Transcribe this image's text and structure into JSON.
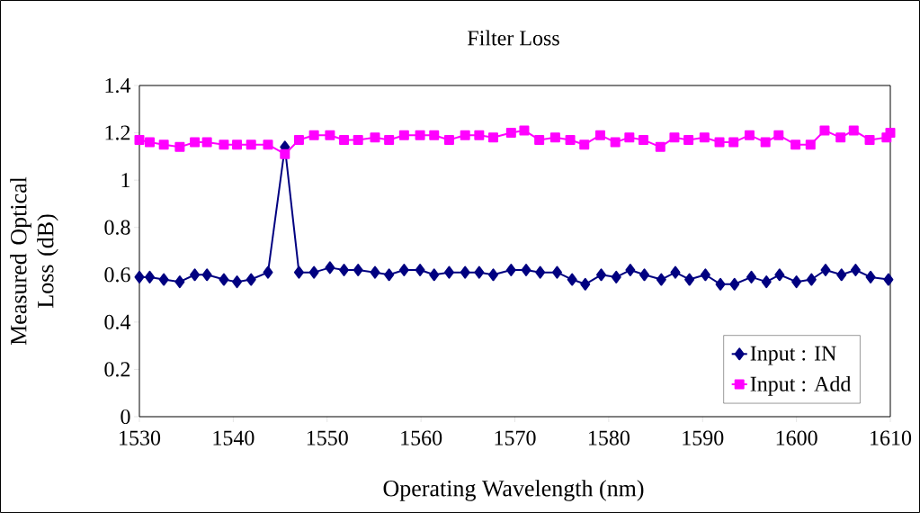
{
  "chart_data": {
    "type": "line",
    "title": "Filter Loss",
    "xlabel": "Operating Wavelength (nm)",
    "ylabel": "Measured Optical Loss (dB)",
    "xlim": [
      1530,
      1610
    ],
    "xticks": [
      1530,
      1540,
      1550,
      1560,
      1570,
      1580,
      1590,
      1600,
      1610
    ],
    "ylim": [
      0,
      1.4
    ],
    "yticks": [
      0,
      {
        "value": 0.2,
        "label": "0.2"
      },
      {
        "value": 0.4,
        "label": "0.4"
      },
      {
        "value": 0.6,
        "label": "0.6"
      },
      {
        "value": 0.8,
        "label": "0.8"
      },
      1,
      {
        "value": 1.2,
        "label": "1.2"
      },
      {
        "value": 1.4,
        "label": "1.4"
      }
    ],
    "grid": false,
    "legend": "bottom right",
    "line_style": "solid",
    "series": [
      {
        "name": "Input : IN",
        "color": "#000080",
        "marker": "diamond",
        "x": [
          1530,
          1531.1,
          1532.6,
          1534.3,
          1535.9,
          1537.2,
          1539.0,
          1540.4,
          1541.9,
          1543.7,
          1545.5,
          1547.0,
          1548.6,
          1550.3,
          1551.8,
          1553.3,
          1555.1,
          1556.6,
          1558.2,
          1559.9,
          1561.4,
          1563.0,
          1564.7,
          1566.2,
          1567.7,
          1569.6,
          1571.2,
          1572.7,
          1574.5,
          1576.1,
          1577.5,
          1579.2,
          1580.8,
          1582.3,
          1583.8,
          1585.6,
          1587.1,
          1588.6,
          1590.3,
          1591.9,
          1593.4,
          1595.2,
          1596.8,
          1598.2,
          1600.0,
          1601.6,
          1603.1,
          1604.8,
          1606.3,
          1607.9,
          1609.8
        ],
        "values": [
          0.59,
          0.59,
          0.58,
          0.57,
          0.6,
          0.6,
          0.58,
          0.57,
          0.58,
          0.61,
          1.14,
          0.61,
          0.61,
          0.63,
          0.62,
          0.62,
          0.61,
          0.6,
          0.62,
          0.62,
          0.6,
          0.61,
          0.61,
          0.61,
          0.6,
          0.62,
          0.62,
          0.61,
          0.61,
          0.58,
          0.56,
          0.6,
          0.59,
          0.62,
          0.6,
          0.58,
          0.61,
          0.58,
          0.6,
          0.56,
          0.56,
          0.59,
          0.57,
          0.6,
          0.57,
          0.58,
          0.62,
          0.6,
          0.62,
          0.59,
          0.58
        ]
      },
      {
        "name": "Input : Add",
        "color": "#ff00ff",
        "marker": "square",
        "x": [
          1530,
          1531.1,
          1532.6,
          1534.3,
          1535.9,
          1537.2,
          1539.0,
          1540.4,
          1541.9,
          1543.7,
          1545.5,
          1547.0,
          1548.6,
          1550.3,
          1551.8,
          1553.3,
          1555.1,
          1556.6,
          1558.2,
          1559.9,
          1561.4,
          1563.0,
          1564.7,
          1566.2,
          1567.7,
          1569.6,
          1571.0,
          1572.6,
          1574.3,
          1575.9,
          1577.4,
          1579.1,
          1580.7,
          1582.2,
          1583.7,
          1585.5,
          1587.0,
          1588.5,
          1590.2,
          1591.8,
          1593.3,
          1595.0,
          1596.7,
          1598.1,
          1599.9,
          1601.5,
          1603.0,
          1604.7,
          1606.1,
          1607.8,
          1609.6,
          1610.0
        ],
        "values": [
          1.17,
          1.16,
          1.15,
          1.14,
          1.16,
          1.16,
          1.15,
          1.15,
          1.15,
          1.15,
          1.11,
          1.17,
          1.19,
          1.19,
          1.17,
          1.17,
          1.18,
          1.17,
          1.19,
          1.19,
          1.19,
          1.17,
          1.19,
          1.19,
          1.18,
          1.2,
          1.21,
          1.17,
          1.18,
          1.17,
          1.15,
          1.19,
          1.16,
          1.18,
          1.17,
          1.14,
          1.18,
          1.17,
          1.18,
          1.16,
          1.16,
          1.19,
          1.16,
          1.19,
          1.15,
          1.15,
          1.21,
          1.18,
          1.21,
          1.17,
          1.18,
          1.2
        ]
      }
    ]
  }
}
